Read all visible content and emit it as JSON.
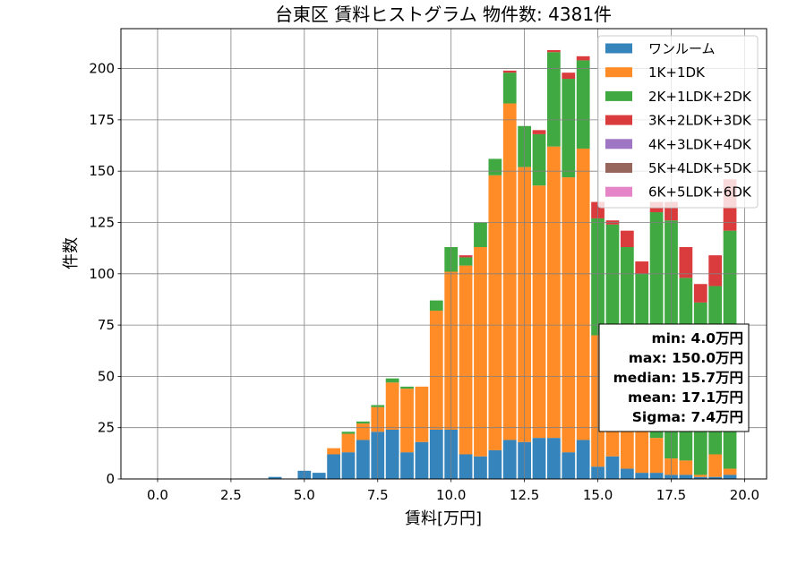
{
  "chart_data": {
    "type": "bar",
    "stacked": true,
    "title": "台東区 賃料ヒストグラム 物件数: 4381件",
    "xlabel": "賃料[万円]",
    "ylabel": "件数",
    "x": [
      0.0,
      0.5,
      1.0,
      1.5,
      2.0,
      2.5,
      3.0,
      3.5,
      4.0,
      4.5,
      5.0,
      5.5,
      6.0,
      6.5,
      7.0,
      7.5,
      8.0,
      8.5,
      9.0,
      9.5,
      10.0,
      10.5,
      11.0,
      11.5,
      12.0,
      12.5,
      13.0,
      13.5,
      14.0,
      14.5,
      15.0,
      15.5,
      16.0,
      16.5,
      17.0,
      17.5,
      18.0,
      18.5,
      19.0,
      19.5
    ],
    "xlim": [
      -1.25,
      20.75
    ],
    "ylim": [
      0,
      219.45
    ],
    "xticks": [
      0,
      2.5,
      5,
      7.5,
      10,
      12.5,
      15,
      17.5,
      20
    ],
    "xtick_labels": [
      "0.0",
      "2.5",
      "5.0",
      "7.5",
      "10.0",
      "12.5",
      "15.0",
      "17.5",
      "20.0"
    ],
    "yticks": [
      0,
      25,
      50,
      75,
      100,
      125,
      150,
      175,
      200
    ],
    "ytick_labels": [
      "0",
      "25",
      "50",
      "75",
      "100",
      "125",
      "150",
      "175",
      "200"
    ],
    "grid": true,
    "legend_position": "upper right",
    "series": [
      {
        "name": "ワンルーム",
        "color": "#1f77b4",
        "values": [
          0,
          0,
          0,
          0,
          0,
          0,
          0,
          0,
          1,
          0,
          4,
          3,
          12,
          13,
          19,
          23,
          24,
          13,
          18,
          24,
          24,
          12,
          11,
          14,
          19,
          18,
          20,
          20,
          13,
          19,
          6,
          11,
          5,
          3,
          3,
          2,
          2,
          1,
          1,
          2
        ]
      },
      {
        "name": "1K+1DK",
        "color": "#ff7f0e",
        "values": [
          0,
          0,
          0,
          0,
          0,
          0,
          0,
          0,
          0,
          0,
          0,
          0,
          3,
          9,
          8,
          12,
          23,
          31,
          27,
          58,
          77,
          92,
          102,
          134,
          164,
          134,
          123,
          142,
          134,
          142,
          64,
          47,
          40,
          25,
          17,
          8,
          7,
          1,
          11,
          3
        ]
      },
      {
        "name": "2K+1LDK+2DK",
        "color": "#2ca02c",
        "values": [
          0,
          0,
          0,
          0,
          0,
          0,
          0,
          0,
          0,
          0,
          0,
          0,
          0,
          1,
          1,
          1,
          2,
          1,
          0,
          5,
          12,
          4,
          12,
          8,
          15,
          20,
          25,
          46,
          48,
          43,
          57,
          66,
          68,
          72,
          110,
          116,
          89,
          84,
          82,
          116
        ]
      },
      {
        "name": "3K+2LDK+3DK",
        "color": "#d62728",
        "values": [
          0,
          0,
          0,
          0,
          0,
          0,
          0,
          0,
          0,
          0,
          0,
          0,
          0,
          0,
          0,
          0,
          0,
          0,
          0,
          0,
          0,
          1,
          0,
          0,
          1,
          0,
          2,
          1,
          3,
          2,
          8,
          2,
          8,
          6,
          5,
          9,
          15,
          9,
          15,
          25
        ]
      },
      {
        "name": "4K+3LDK+4DK",
        "color": "#9467bd",
        "values": [
          0,
          0,
          0,
          0,
          0,
          0,
          0,
          0,
          0,
          0,
          0,
          0,
          0,
          0,
          0,
          0,
          0,
          0,
          0,
          0,
          0,
          0,
          0,
          0,
          0,
          0,
          0,
          0,
          0,
          0,
          0,
          0,
          0,
          0,
          0,
          0,
          0,
          0,
          0,
          0
        ]
      },
      {
        "name": "5K+4LDK+5DK",
        "color": "#8c564b",
        "values": [
          0,
          0,
          0,
          0,
          0,
          0,
          0,
          0,
          0,
          0,
          0,
          0,
          0,
          0,
          0,
          0,
          0,
          0,
          0,
          0,
          0,
          0,
          0,
          0,
          0,
          0,
          0,
          0,
          0,
          0,
          0,
          0,
          0,
          0,
          0,
          0,
          0,
          0,
          0,
          0
        ]
      },
      {
        "name": "6K+5LDK+6DK",
        "color": "#e377c2",
        "values": [
          0,
          0,
          0,
          0,
          0,
          0,
          0,
          0,
          0,
          0,
          0,
          0,
          0,
          0,
          0,
          0,
          0,
          0,
          0,
          0,
          0,
          0,
          0,
          0,
          0,
          0,
          0,
          0,
          0,
          0,
          0,
          0,
          0,
          0,
          0,
          0,
          0,
          0,
          0,
          0
        ]
      }
    ],
    "stats_box": {
      "position": "center right",
      "lines": [
        "min: 4.0万円",
        "max: 150.0万円",
        "median: 15.7万円",
        "mean: 17.1万円",
        "Sigma: 7.4万円"
      ]
    }
  }
}
